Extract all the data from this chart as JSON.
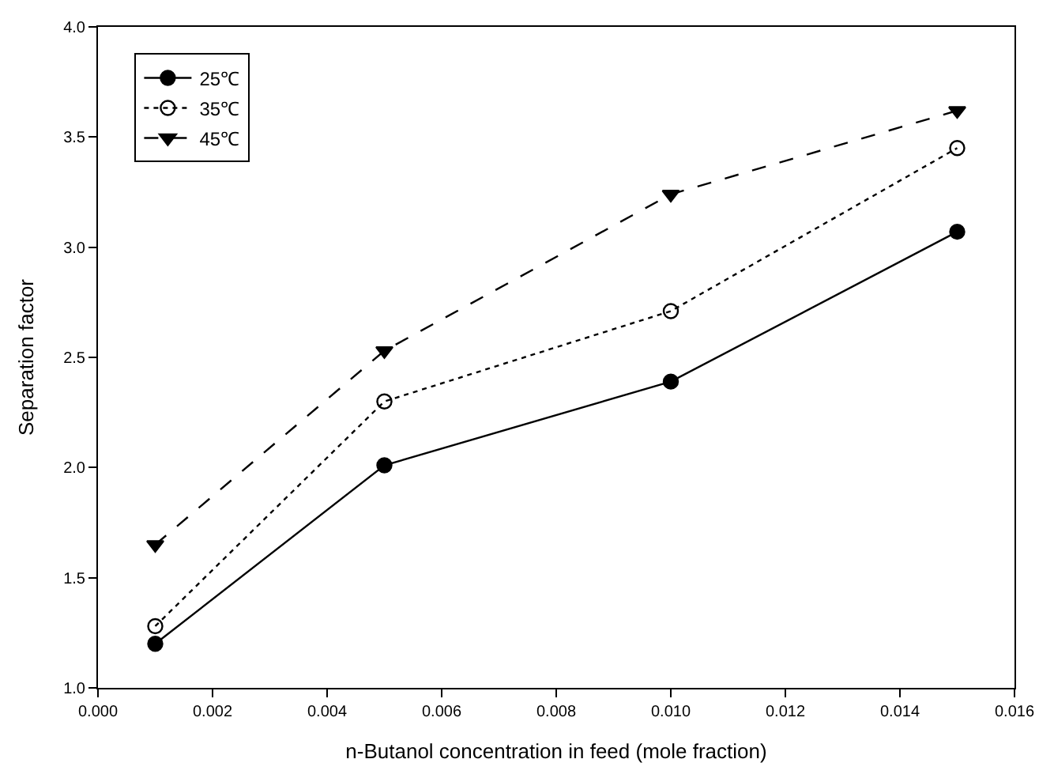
{
  "chart_data": {
    "type": "line",
    "xlabel": "n-Butanol concentration in feed (mole fraction)",
    "ylabel": "Separation factor",
    "x": [
      0.001,
      0.005,
      0.01,
      0.015
    ],
    "series": [
      {
        "name": "25℃",
        "color": "#000000",
        "values": [
          1.2,
          2.01,
          2.39,
          3.07
        ],
        "marker": "circle",
        "line_style": "solid"
      },
      {
        "name": "35℃",
        "color": "#000000",
        "values": [
          1.28,
          2.3,
          2.71,
          3.45
        ],
        "marker": "circle-open",
        "line_style": "dotted"
      },
      {
        "name": "45℃",
        "color": "#000000",
        "values": [
          1.65,
          2.53,
          3.24,
          3.62
        ],
        "marker": "triangle-down",
        "line_style": "dashed"
      }
    ],
    "xlim": [
      0,
      0.016
    ],
    "xticks": [
      {
        "value": 0,
        "label": "0.000"
      },
      {
        "value": 0.002,
        "label": "0.002"
      },
      {
        "value": 0.004,
        "label": "0.004"
      },
      {
        "value": 0.006,
        "label": "0.006"
      },
      {
        "value": 0.008,
        "label": "0.008"
      },
      {
        "value": 0.01,
        "label": "0.010"
      },
      {
        "value": 0.012,
        "label": "0.012"
      },
      {
        "value": 0.014,
        "label": "0.014"
      },
      {
        "value": 0.016,
        "label": "0.016"
      }
    ],
    "ylim": [
      1.0,
      4.0
    ],
    "yticks": [
      {
        "value": 1,
        "label": "1.0"
      },
      {
        "value": 1.5,
        "label": "1.5"
      },
      {
        "value": 2,
        "label": "2.0"
      },
      {
        "value": 2.5,
        "label": "2.5"
      },
      {
        "value": 3,
        "label": "3.0"
      },
      {
        "value": 3.5,
        "label": "3.5"
      },
      {
        "value": 4,
        "label": "4.0"
      }
    ],
    "legend": "top left"
  }
}
